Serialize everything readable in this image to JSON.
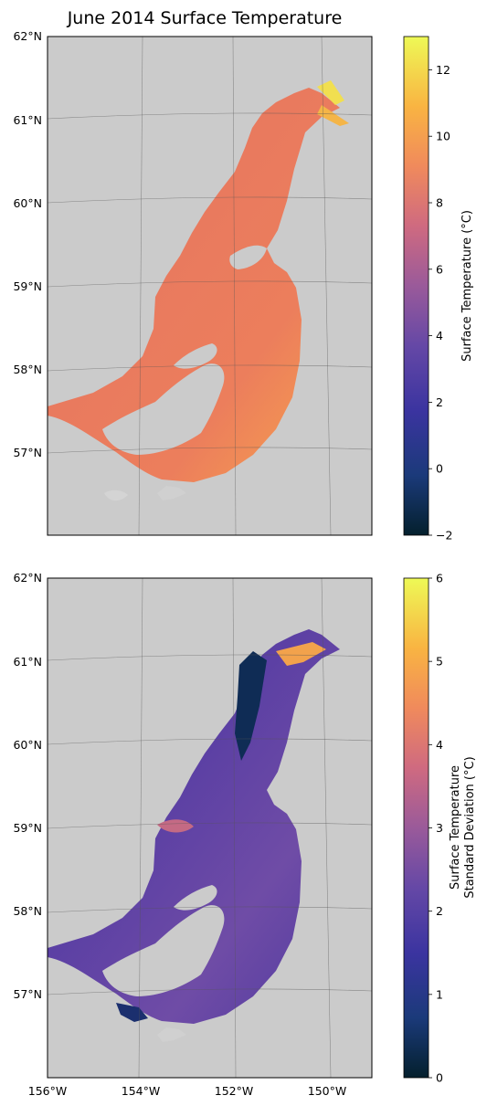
{
  "figure": {
    "title": "June 2014 Surface Temperature",
    "colormap": "thermal",
    "land_color": "#cbcbcb",
    "water_mask_color": "#ffffff",
    "latitude_labels": [
      "62°N",
      "61°N",
      "60°N",
      "59°N",
      "58°N",
      "57°N"
    ],
    "longitude_labels": [
      "156°W",
      "154°W",
      "152°W",
      "150°W"
    ]
  },
  "chart_data": [
    {
      "type": "heatmap",
      "panel": "top",
      "variable": "Surface Temperature",
      "colorbar_label": "Surface Temperature (°C)",
      "colorbar_ticks": [
        "12",
        "10",
        "8",
        "6",
        "4",
        "2",
        "0",
        "−2"
      ],
      "colorbar_range": [
        -2,
        13
      ],
      "typical_value_range": [
        6,
        12
      ]
    },
    {
      "type": "heatmap",
      "panel": "bottom",
      "variable": "Surface Temperature Standard Deviation",
      "colorbar_label_line1": "Surface Temperature",
      "colorbar_label_line2": "Standard Deviation (°C)",
      "colorbar_ticks": [
        "6",
        "5",
        "4",
        "3",
        "2",
        "1",
        "0"
      ],
      "colorbar_range": [
        0,
        6
      ],
      "typical_value_range": [
        0,
        6
      ]
    }
  ]
}
